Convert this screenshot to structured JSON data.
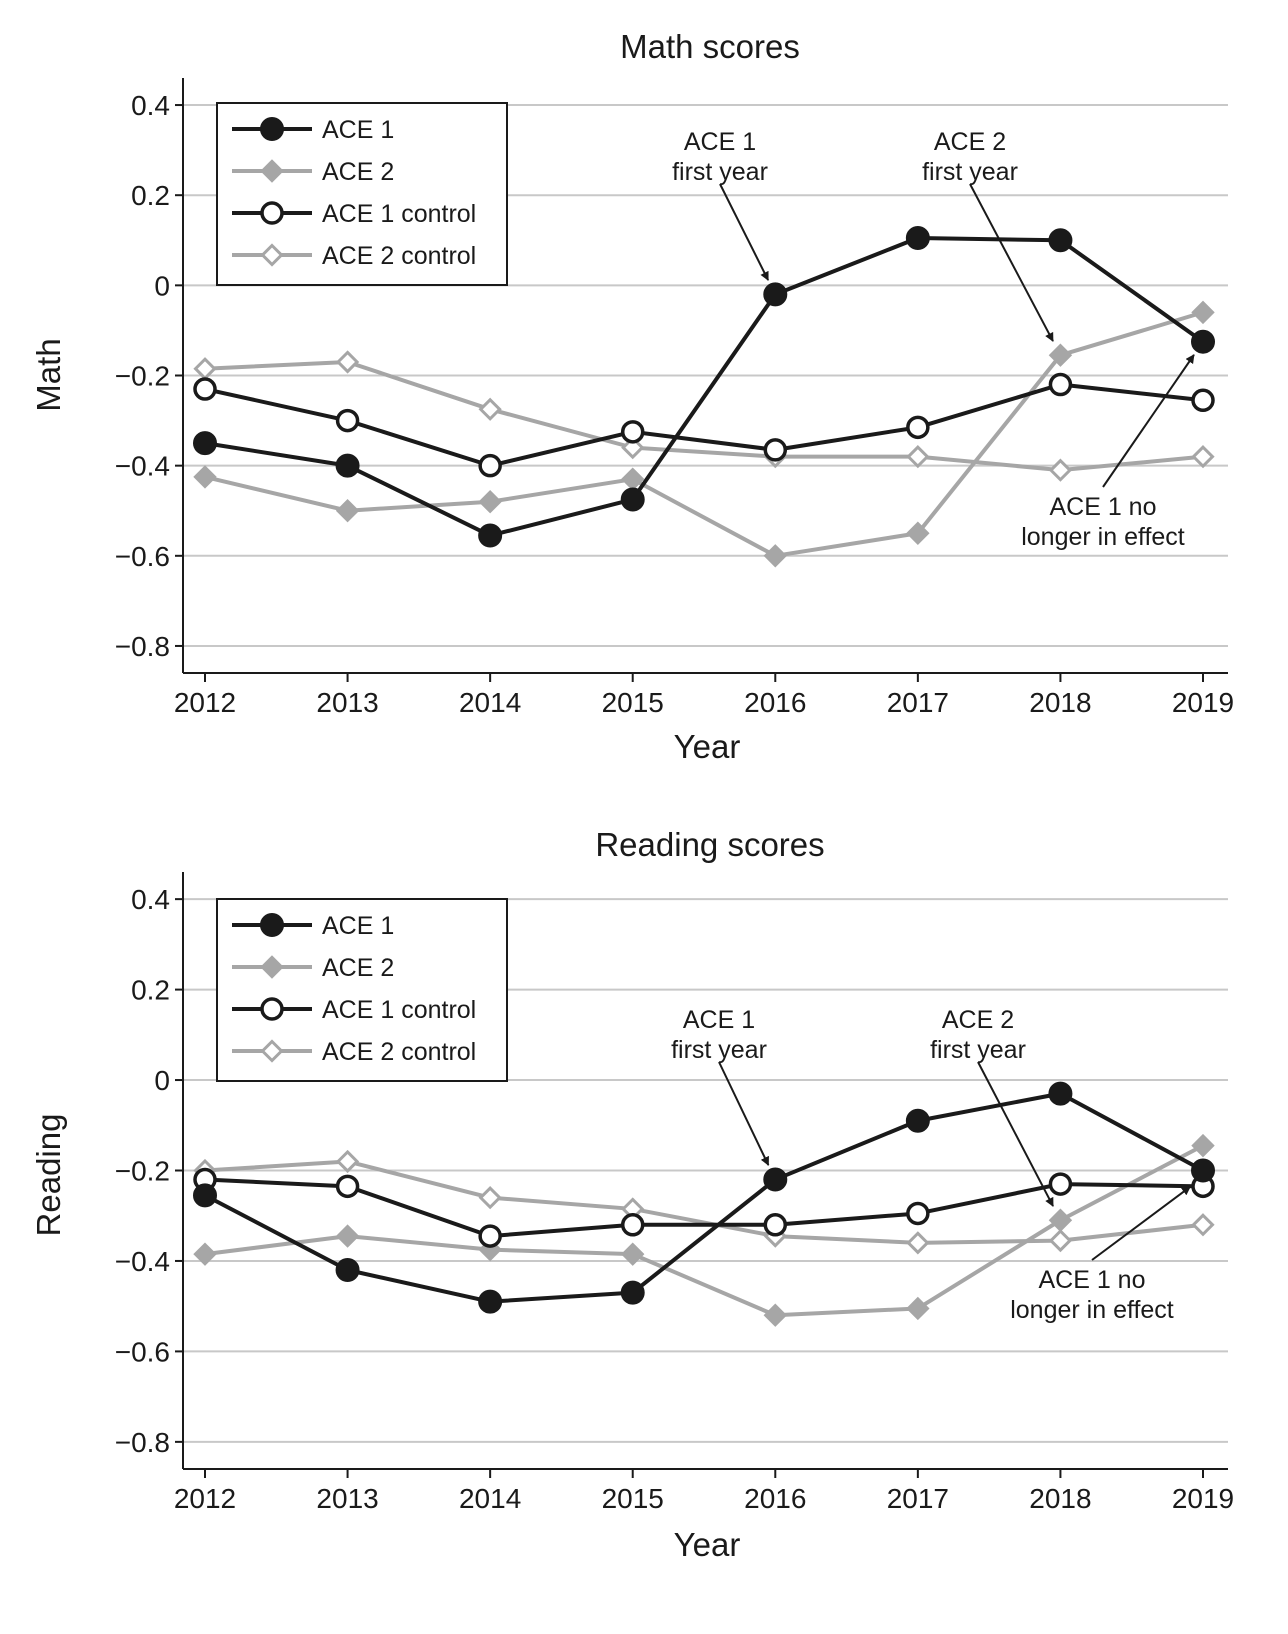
{
  "chart_data": [
    {
      "type": "line",
      "title": "Math scores",
      "xlabel": "Year",
      "ylabel": "Math",
      "x": [
        2012,
        2013,
        2014,
        2015,
        2016,
        2017,
        2018,
        2019
      ],
      "x_tick_labels": [
        "2012",
        "2013",
        "2014",
        "2015",
        "2016",
        "2017",
        "2018",
        "2019"
      ],
      "ylim": [
        -0.86,
        0.46
      ],
      "y_ticks": [
        0.4,
        0.2,
        0,
        -0.2,
        -0.4,
        -0.6,
        -0.8
      ],
      "y_tick_labels": [
        "0.4",
        "0.2",
        "0",
        "−0.2",
        "−0.4",
        "−0.6",
        "−0.8"
      ],
      "grid": true,
      "legend_position": "top-left",
      "series": [
        {
          "name": "ACE 1",
          "color": "#1a1a1a",
          "marker": "filled-circle",
          "values": [
            -0.35,
            -0.4,
            -0.555,
            -0.475,
            -0.02,
            0.105,
            0.1,
            -0.125
          ]
        },
        {
          "name": "ACE 2",
          "color": "#a6a6a6",
          "marker": "filled-diamond",
          "values": [
            -0.425,
            -0.5,
            -0.48,
            -0.43,
            -0.6,
            -0.55,
            -0.155,
            -0.06
          ]
        },
        {
          "name": "ACE 1 control",
          "color": "#1a1a1a",
          "marker": "hollow-circle",
          "values": [
            -0.23,
            -0.3,
            -0.4,
            -0.325,
            -0.365,
            -0.315,
            -0.22,
            -0.255
          ]
        },
        {
          "name": "ACE 2 control",
          "color": "#a6a6a6",
          "marker": "hollow-diamond",
          "values": [
            -0.185,
            -0.17,
            -0.275,
            -0.36,
            -0.38,
            -0.38,
            -0.41,
            -0.38
          ]
        }
      ],
      "annotations": [
        {
          "lines": [
            "ACE 1",
            "first year"
          ],
          "target_x": 2016,
          "target_y": -0.02
        },
        {
          "lines": [
            "ACE 2",
            "first year"
          ],
          "target_x": 2018,
          "target_y": -0.155
        },
        {
          "lines": [
            "ACE 1 no",
            "longer in effect"
          ],
          "target_x": 2019,
          "target_y": -0.125
        }
      ]
    },
    {
      "type": "line",
      "title": "Reading scores",
      "xlabel": "Year",
      "ylabel": "Reading",
      "x": [
        2012,
        2013,
        2014,
        2015,
        2016,
        2017,
        2018,
        2019
      ],
      "x_tick_labels": [
        "2012",
        "2013",
        "2014",
        "2015",
        "2016",
        "2017",
        "2018",
        "2019"
      ],
      "ylim": [
        -0.86,
        0.46
      ],
      "y_ticks": [
        0.4,
        0.2,
        0,
        -0.2,
        -0.4,
        -0.6,
        -0.8
      ],
      "y_tick_labels": [
        "0.4",
        "0.2",
        "0",
        "−0.2",
        "−0.4",
        "−0.6",
        "−0.8"
      ],
      "grid": true,
      "legend_position": "top-left",
      "series": [
        {
          "name": "ACE 1",
          "color": "#1a1a1a",
          "marker": "filled-circle",
          "values": [
            -0.255,
            -0.42,
            -0.49,
            -0.47,
            -0.22,
            -0.09,
            -0.03,
            -0.2
          ]
        },
        {
          "name": "ACE 2",
          "color": "#a6a6a6",
          "marker": "filled-diamond",
          "values": [
            -0.385,
            -0.345,
            -0.375,
            -0.385,
            -0.52,
            -0.505,
            -0.31,
            -0.145
          ]
        },
        {
          "name": "ACE 1 control",
          "color": "#1a1a1a",
          "marker": "hollow-circle",
          "values": [
            -0.22,
            -0.235,
            -0.345,
            -0.32,
            -0.32,
            -0.295,
            -0.23,
            -0.235
          ]
        },
        {
          "name": "ACE 2 control",
          "color": "#a6a6a6",
          "marker": "hollow-diamond",
          "values": [
            -0.2,
            -0.18,
            -0.26,
            -0.285,
            -0.345,
            -0.36,
            -0.355,
            -0.32
          ]
        }
      ],
      "annotations": [
        {
          "lines": [
            "ACE 1",
            "first year"
          ],
          "target_x": 2016,
          "target_y": -0.22
        },
        {
          "lines": [
            "ACE 2",
            "first year"
          ],
          "target_x": 2018,
          "target_y": -0.31
        },
        {
          "lines": [
            "ACE 1 no",
            "longer in effect"
          ],
          "target_x": 2019,
          "target_y": -0.215
        }
      ]
    }
  ]
}
